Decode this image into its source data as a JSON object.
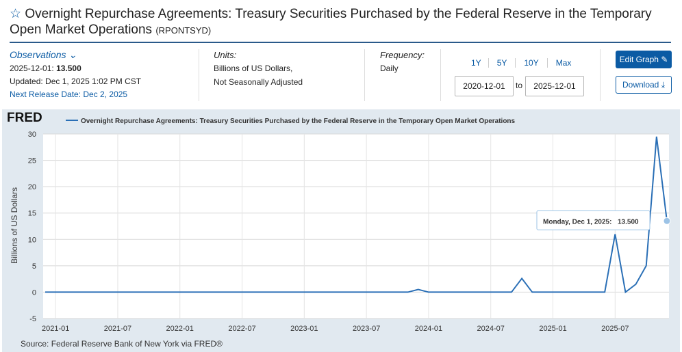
{
  "header": {
    "title": "Overnight Repurchase Agreements: Treasury Securities Purchased by the Federal Reserve in the Temporary Open Market Operations",
    "series_id": "(RPONTSYD)"
  },
  "observations": {
    "label": "Observations",
    "date": "2025-12-01:",
    "value": "13.500",
    "updated": "Updated: Dec 1, 2025 1:02 PM CST",
    "next_release": "Next Release Date: Dec 2, 2025"
  },
  "units": {
    "label": "Units:",
    "lines": [
      "Billions of US Dollars,",
      "Not Seasonally Adjusted"
    ]
  },
  "frequency": {
    "label": "Frequency:",
    "value": "Daily"
  },
  "range_buttons": [
    "1Y",
    "5Y",
    "10Y",
    "Max"
  ],
  "date_range": {
    "start": "2020-12-01",
    "separator": "to",
    "end": "2025-12-01"
  },
  "buttons": {
    "edit": "Edit Graph",
    "download": "Download"
  },
  "logo": "FRED",
  "source": "Source: Federal Reserve Bank of New York via FRED®",
  "tooltip": {
    "label": "Monday, Dec 1, 2025:",
    "value": "13.500"
  },
  "chart_data": {
    "type": "line",
    "title": "Overnight Repurchase Agreements: Treasury Securities Purchased by the Federal Reserve in the Temporary Open Market Operations",
    "y_label": "Billions of US Dollars",
    "x": [
      "2020-12",
      "2021-01",
      "2021-02",
      "2021-03",
      "2021-04",
      "2021-05",
      "2021-06",
      "2021-07",
      "2021-08",
      "2021-09",
      "2021-10",
      "2021-11",
      "2021-12",
      "2022-01",
      "2022-02",
      "2022-03",
      "2022-04",
      "2022-05",
      "2022-06",
      "2022-07",
      "2022-08",
      "2022-09",
      "2022-10",
      "2022-11",
      "2022-12",
      "2023-01",
      "2023-02",
      "2023-03",
      "2023-04",
      "2023-05",
      "2023-06",
      "2023-07",
      "2023-08",
      "2023-09",
      "2023-10",
      "2023-11",
      "2023-12",
      "2024-01",
      "2024-02",
      "2024-03",
      "2024-04",
      "2024-05",
      "2024-06",
      "2024-07",
      "2024-08",
      "2024-09",
      "2024-10",
      "2024-11",
      "2024-12",
      "2025-01",
      "2025-02",
      "2025-03",
      "2025-04",
      "2025-05",
      "2025-06",
      "2025-07",
      "2025-08",
      "2025-09",
      "2025-10",
      "2025-11",
      "2025-12"
    ],
    "xticks": [
      "2021-01",
      "2021-07",
      "2022-01",
      "2022-07",
      "2023-01",
      "2023-07",
      "2024-01",
      "2024-07",
      "2025-01",
      "2025-07"
    ],
    "series": [
      {
        "name": "Overnight Repurchase Agreements: Treasury Securities Purchased by the Federal Reserve in the Temporary Open Market Operations",
        "color": "#2a6fb6",
        "values": [
          0,
          0,
          0,
          0,
          0,
          0,
          0,
          0,
          0,
          0,
          0,
          0,
          0,
          0,
          0,
          0,
          0,
          0,
          0,
          0,
          0,
          0,
          0,
          0,
          0,
          0,
          0,
          0,
          0,
          0,
          0,
          0,
          0,
          0,
          0,
          0,
          0.5,
          0,
          0,
          0,
          0,
          0,
          0,
          0,
          0,
          0,
          2.6,
          0,
          0,
          0,
          0,
          0,
          0,
          0,
          0,
          11,
          0,
          1.5,
          5,
          29.5,
          13.5
        ]
      }
    ],
    "ylim": [
      -5,
      30
    ],
    "yticks": [
      -5,
      0,
      5,
      10,
      15,
      20,
      25,
      30
    ],
    "grid": true
  }
}
